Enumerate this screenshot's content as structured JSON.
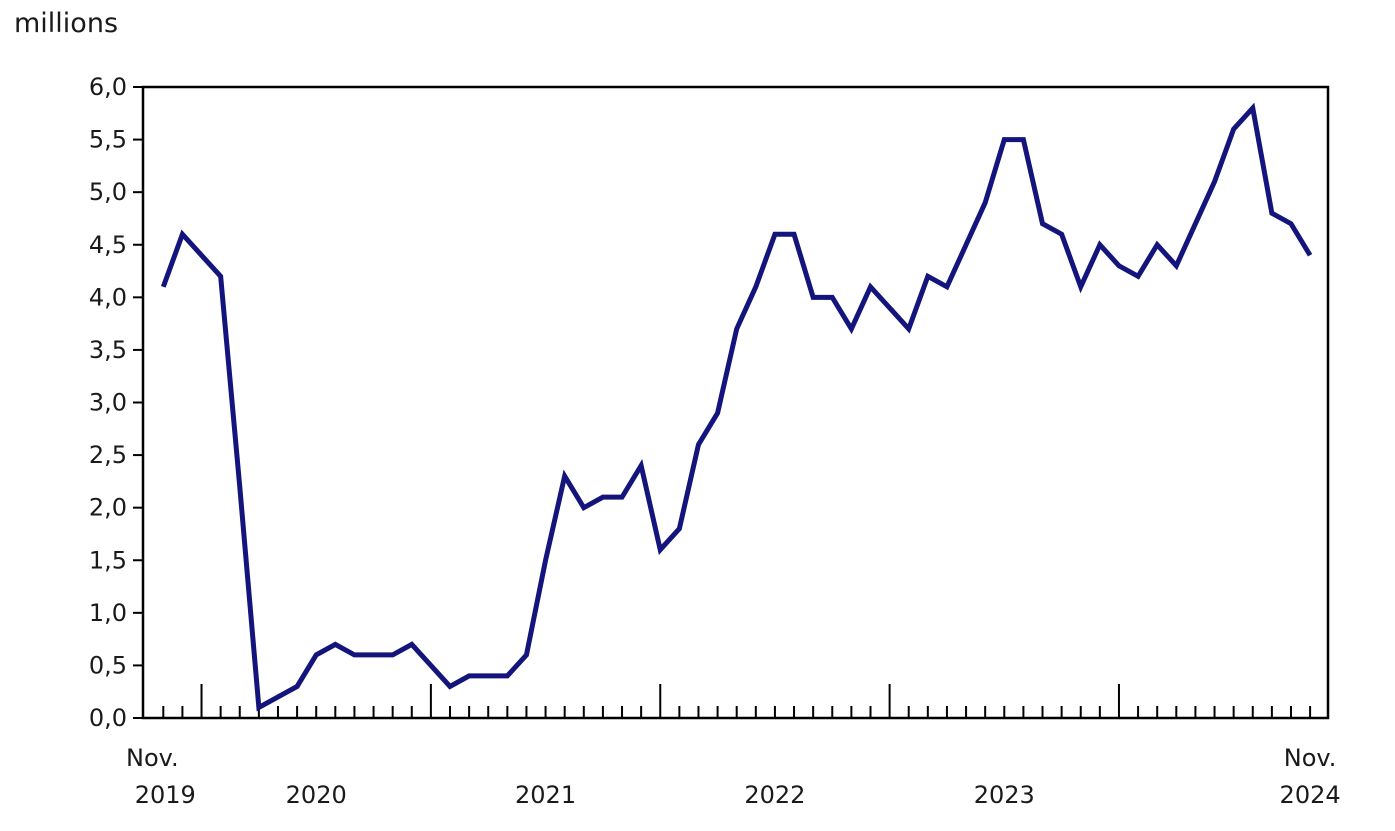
{
  "chart_data": {
    "type": "line",
    "title": "",
    "unit_label": "millions",
    "x": [
      "2019-11",
      "2019-12",
      "2020-01",
      "2020-02",
      "2020-03",
      "2020-04",
      "2020-05",
      "2020-06",
      "2020-07",
      "2020-08",
      "2020-09",
      "2020-10",
      "2020-11",
      "2020-12",
      "2021-01",
      "2021-02",
      "2021-03",
      "2021-04",
      "2021-05",
      "2021-06",
      "2021-07",
      "2021-08",
      "2021-09",
      "2021-10",
      "2021-11",
      "2021-12",
      "2022-01",
      "2022-02",
      "2022-03",
      "2022-04",
      "2022-05",
      "2022-06",
      "2022-07",
      "2022-08",
      "2022-09",
      "2022-10",
      "2022-11",
      "2022-12",
      "2023-01",
      "2023-02",
      "2023-03",
      "2023-04",
      "2023-05",
      "2023-06",
      "2023-07",
      "2023-08",
      "2023-09",
      "2023-10",
      "2023-11",
      "2023-12",
      "2024-01",
      "2024-02",
      "2024-03",
      "2024-04",
      "2024-05",
      "2024-06",
      "2024-07",
      "2024-08",
      "2024-09",
      "2024-10",
      "2024-11"
    ],
    "values": [
      4.1,
      4.6,
      4.4,
      4.2,
      2.2,
      0.1,
      0.2,
      0.3,
      0.6,
      0.7,
      0.6,
      0.6,
      0.6,
      0.7,
      0.5,
      0.3,
      0.4,
      0.4,
      0.4,
      0.6,
      1.5,
      2.3,
      2.0,
      2.1,
      2.1,
      2.4,
      1.6,
      1.8,
      2.6,
      2.9,
      3.7,
      4.1,
      4.6,
      4.6,
      4.0,
      4.0,
      3.7,
      4.1,
      3.9,
      3.7,
      4.2,
      4.1,
      4.5,
      4.9,
      5.5,
      5.5,
      4.7,
      4.6,
      4.1,
      4.5,
      4.3,
      4.2,
      4.5,
      4.3,
      4.7,
      5.1,
      5.6,
      5.8,
      4.8,
      4.7,
      4.4
    ],
    "ylim": [
      0.0,
      6.0
    ],
    "y_tick_step": 0.5,
    "y_tick_labels": [
      "0,0",
      "0,5",
      "1,0",
      "1,5",
      "2,0",
      "2,5",
      "3,0",
      "3,5",
      "4,0",
      "4,5",
      "5,0",
      "5,5",
      "6,0"
    ],
    "x_axis": {
      "start_label_month": "Nov.",
      "start_label_year": "2019",
      "mid_year_labels": [
        "2020",
        "2021",
        "2022",
        "2023"
      ],
      "end_label_month": "Nov.",
      "end_label_year": "2024"
    },
    "grid": false,
    "legend": "none",
    "line_color": "#14147d",
    "axis_color": "#000000",
    "text_color": "#1a1a1a"
  }
}
